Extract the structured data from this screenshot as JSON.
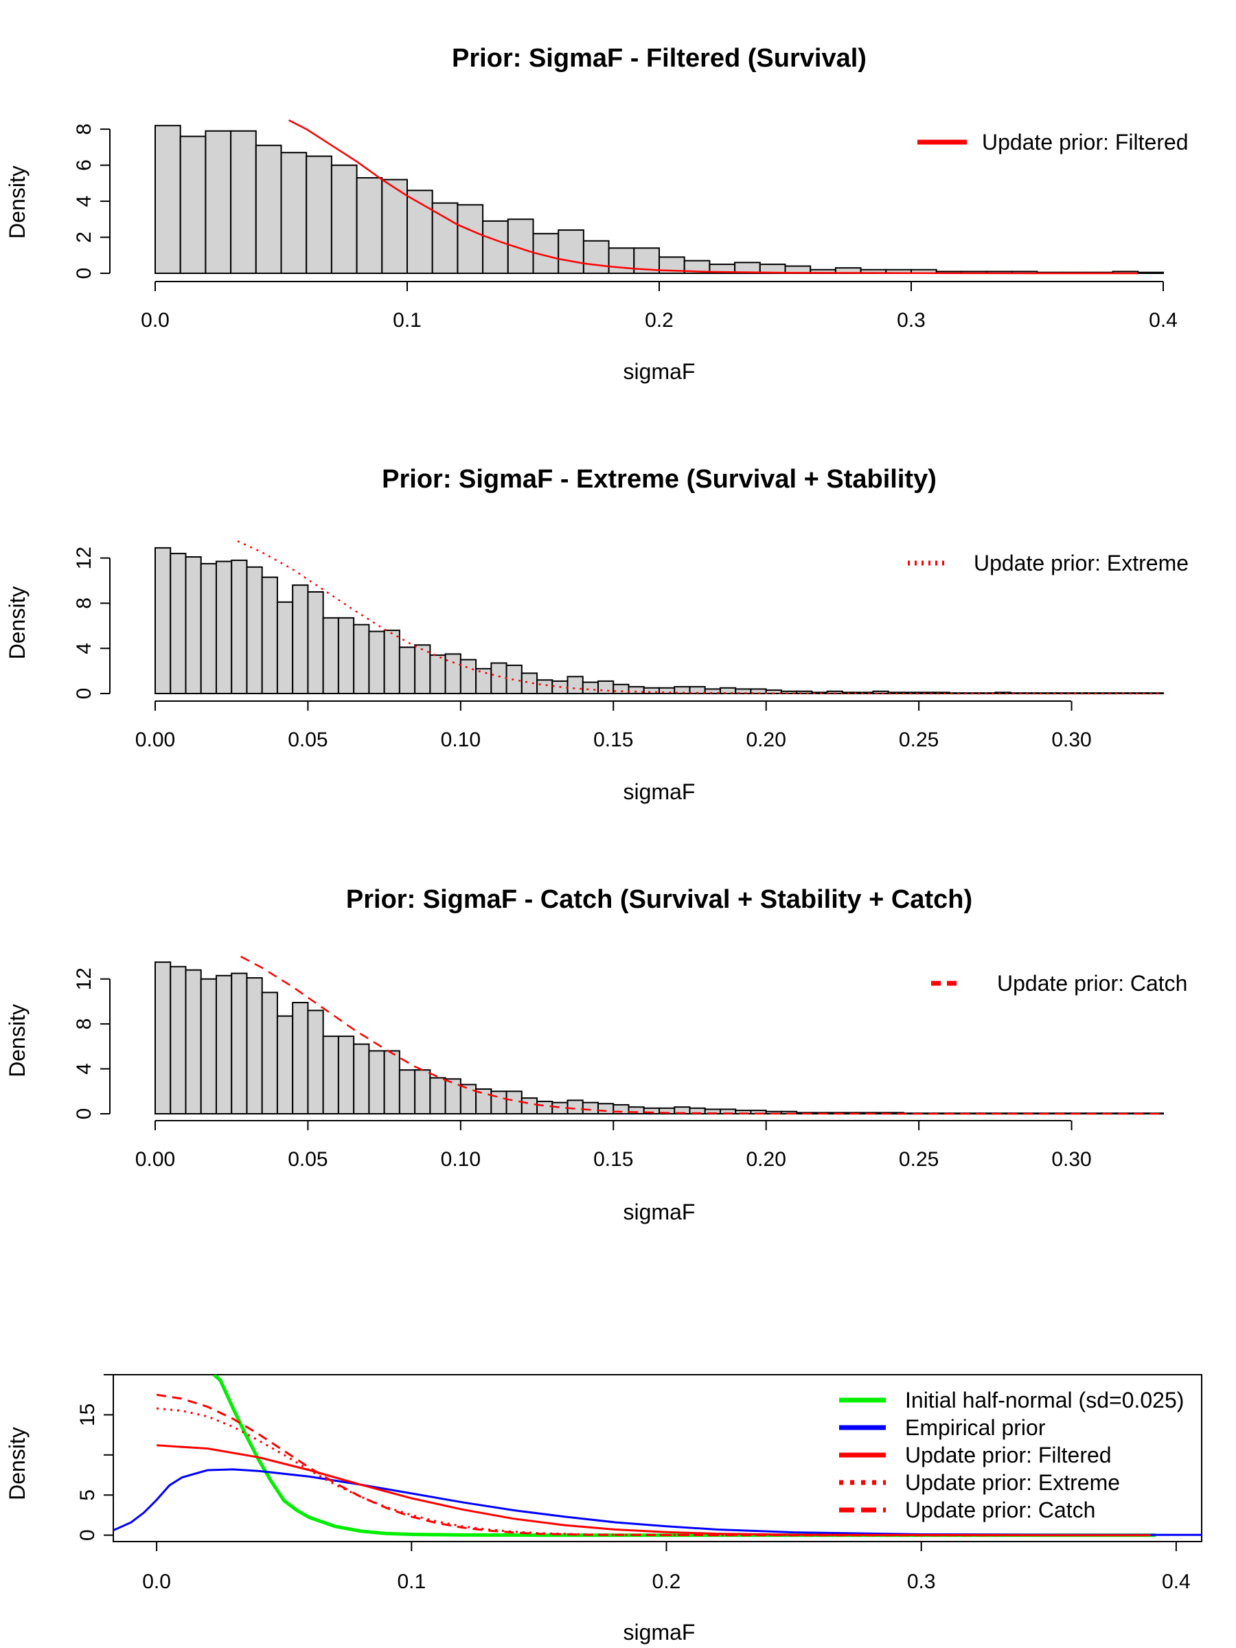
{
  "colors": {
    "bar_fill": "#d3d3d3",
    "outline": "#000000",
    "red": "#ff0000",
    "green": "#00ee00",
    "blue": "#0000ff"
  },
  "chart_data": [
    {
      "type": "bar",
      "title": "Prior: SigmaF - Filtered (Survival)",
      "xlabel": "sigmaF",
      "ylabel": "Density",
      "xlim": [
        0.0,
        0.4
      ],
      "ylim": [
        0,
        8.5
      ],
      "xticks": [
        "0.0",
        "0.1",
        "0.2",
        "0.3",
        "0.4"
      ],
      "yticks": [
        "0",
        "2",
        "4",
        "6",
        "8"
      ],
      "bin_width": 0.01,
      "bin_start": 0.0,
      "values": [
        8.2,
        7.6,
        7.9,
        7.9,
        7.1,
        6.7,
        6.5,
        6.0,
        5.3,
        5.2,
        4.6,
        3.9,
        3.8,
        2.9,
        3.0,
        2.2,
        2.4,
        1.8,
        1.4,
        1.4,
        0.9,
        0.7,
        0.5,
        0.6,
        0.5,
        0.4,
        0.2,
        0.3,
        0.2,
        0.2,
        0.2,
        0.1,
        0.1,
        0.1,
        0.1,
        0.05,
        0.05,
        0.05,
        0.1,
        0.05
      ],
      "legend": {
        "position": "top-right",
        "label": "Update prior: Filtered",
        "style": "solid"
      },
      "curve": {
        "style": "solid",
        "x_from": 0.053,
        "x_to": 0.39,
        "x": [
          0.053,
          0.06,
          0.07,
          0.08,
          0.09,
          0.1,
          0.11,
          0.12,
          0.13,
          0.14,
          0.15,
          0.16,
          0.17,
          0.18,
          0.19,
          0.2,
          0.22,
          0.25,
          0.3,
          0.35,
          0.39
        ],
        "y": [
          8.5,
          8.0,
          7.1,
          6.2,
          5.2,
          4.3,
          3.5,
          2.7,
          2.1,
          1.6,
          1.15,
          0.8,
          0.55,
          0.38,
          0.26,
          0.17,
          0.08,
          0.03,
          0.01,
          0.0,
          0.0
        ]
      }
    },
    {
      "type": "bar",
      "title": "Prior: SigmaF - Extreme (Survival + Stability)",
      "xlabel": "sigmaF",
      "ylabel": "Density",
      "xlim": [
        0.0,
        0.33
      ],
      "ylim": [
        0,
        13.5
      ],
      "xticks": [
        "0.00",
        "0.05",
        "0.10",
        "0.15",
        "0.20",
        "0.25",
        "0.30"
      ],
      "yticks": [
        "0",
        "4",
        "8",
        "12"
      ],
      "bin_width": 0.005,
      "bin_start": 0.0,
      "values": [
        12.9,
        12.4,
        12.1,
        11.5,
        11.7,
        11.8,
        11.2,
        10.3,
        8.1,
        9.6,
        9.0,
        6.7,
        6.7,
        6.1,
        5.5,
        5.6,
        4.1,
        4.3,
        3.4,
        3.5,
        3.0,
        2.2,
        2.7,
        2.5,
        1.8,
        1.2,
        1.1,
        1.5,
        1.0,
        1.1,
        0.8,
        0.6,
        0.5,
        0.5,
        0.6,
        0.6,
        0.4,
        0.5,
        0.4,
        0.4,
        0.3,
        0.2,
        0.2,
        0.1,
        0.2,
        0.1,
        0.1,
        0.2,
        0.1,
        0.1,
        0.1,
        0.1,
        0.05,
        0.05,
        0.05,
        0.1,
        0.05,
        0.05,
        0.05,
        0.05,
        0.05,
        0.05,
        0.05,
        0.05,
        0.05,
        0.05
      ],
      "legend": {
        "position": "top-right",
        "label": "Update prior: Extreme",
        "style": "dotted"
      },
      "curve": {
        "style": "dotted",
        "x": [
          0.027,
          0.035,
          0.045,
          0.055,
          0.065,
          0.075,
          0.085,
          0.095,
          0.105,
          0.115,
          0.125,
          0.135,
          0.15,
          0.17,
          0.2,
          0.25,
          0.33
        ],
        "y": [
          13.5,
          12.5,
          11.0,
          9.2,
          7.4,
          5.7,
          4.2,
          3.0,
          2.05,
          1.35,
          0.85,
          0.5,
          0.22,
          0.08,
          0.02,
          0.0,
          0.0
        ]
      }
    },
    {
      "type": "bar",
      "title": "Prior: SigmaF - Catch (Survival + Stability + Catch)",
      "xlabel": "sigmaF",
      "ylabel": "Density",
      "xlim": [
        0.0,
        0.33
      ],
      "ylim": [
        0,
        14
      ],
      "xticks": [
        "0.00",
        "0.05",
        "0.10",
        "0.15",
        "0.20",
        "0.25",
        "0.30"
      ],
      "yticks": [
        "0",
        "4",
        "8",
        "12"
      ],
      "bin_width": 0.005,
      "bin_start": 0.0,
      "values": [
        13.5,
        13.1,
        12.8,
        12.0,
        12.3,
        12.5,
        12.1,
        10.8,
        8.7,
        9.9,
        9.2,
        6.9,
        6.9,
        6.2,
        5.6,
        5.6,
        3.9,
        3.9,
        3.2,
        3.1,
        2.6,
        2.2,
        2.0,
        2.0,
        1.4,
        1.1,
        1.0,
        1.2,
        1.0,
        0.9,
        0.8,
        0.6,
        0.5,
        0.5,
        0.6,
        0.5,
        0.4,
        0.4,
        0.3,
        0.3,
        0.2,
        0.2,
        0.1,
        0.1,
        0.1,
        0.1,
        0.1,
        0.1,
        0.1,
        0.05,
        0.05,
        0.05,
        0.05,
        0.05,
        0.05,
        0.05,
        0.05,
        0.05,
        0.05,
        0.05,
        0.05,
        0.05,
        0.05,
        0.05,
        0.05,
        0.05
      ],
      "legend": {
        "position": "top-right",
        "label": "Update prior: Catch",
        "style": "dashed"
      },
      "curve": {
        "style": "dashed",
        "x": [
          0.028,
          0.035,
          0.045,
          0.055,
          0.065,
          0.075,
          0.085,
          0.095,
          0.105,
          0.115,
          0.125,
          0.135,
          0.15,
          0.17,
          0.2,
          0.25,
          0.33
        ],
        "y": [
          14.0,
          13.0,
          11.3,
          9.4,
          7.5,
          5.8,
          4.2,
          3.0,
          2.0,
          1.3,
          0.8,
          0.5,
          0.2,
          0.07,
          0.02,
          0.0,
          0.0
        ]
      }
    },
    {
      "type": "line",
      "title": "",
      "xlabel": "sigmaF",
      "ylabel": "Density",
      "xlim": [
        -0.017,
        0.41
      ],
      "ylim": [
        -0.8,
        20
      ],
      "xticks": [
        "0.0",
        "0.1",
        "0.2",
        "0.3",
        "0.4"
      ],
      "yticks": [
        "0",
        "5",
        "15"
      ],
      "legend": {
        "position": "top-right"
      },
      "series": [
        {
          "name": "Initial half-normal (sd=0.025)",
          "color": "green",
          "style": "solid",
          "width": 5,
          "x": [
            0.0225,
            0.025,
            0.03,
            0.035,
            0.04,
            0.045,
            0.05,
            0.055,
            0.06,
            0.07,
            0.08,
            0.09,
            0.1,
            0.12,
            0.15,
            0.2,
            0.3,
            0.392
          ],
          "y": [
            20,
            19.3,
            15.8,
            12.5,
            9.4,
            6.7,
            4.3,
            3.1,
            2.2,
            1.1,
            0.5,
            0.2,
            0.1,
            0.02,
            0.0,
            0.0,
            0.0,
            0.0
          ]
        },
        {
          "name": "Empirical prior",
          "color": "blue",
          "style": "solid",
          "width": 3,
          "x": [
            -0.017,
            -0.01,
            -0.005,
            0.0,
            0.005,
            0.01,
            0.02,
            0.03,
            0.04,
            0.06,
            0.08,
            0.1,
            0.12,
            0.14,
            0.16,
            0.18,
            0.2,
            0.22,
            0.25,
            0.3,
            0.35,
            0.41
          ],
          "y": [
            0.6,
            1.6,
            2.8,
            4.4,
            6.2,
            7.2,
            8.1,
            8.2,
            8.0,
            7.3,
            6.3,
            5.2,
            4.1,
            3.1,
            2.3,
            1.6,
            1.1,
            0.7,
            0.35,
            0.1,
            0.05,
            0.03
          ]
        },
        {
          "name": "Update prior: Filtered",
          "color": "red",
          "style": "solid",
          "width": 3,
          "x": [
            0.0,
            0.02,
            0.04,
            0.06,
            0.08,
            0.1,
            0.12,
            0.14,
            0.16,
            0.18,
            0.2,
            0.22,
            0.25,
            0.3,
            0.35,
            0.39
          ],
          "y": [
            11.2,
            10.8,
            9.7,
            8.1,
            6.3,
            4.6,
            3.2,
            2.05,
            1.25,
            0.7,
            0.38,
            0.18,
            0.05,
            0.01,
            0.0,
            0.0
          ]
        },
        {
          "name": "Update prior: Extreme",
          "color": "red",
          "style": "dotted",
          "width": 3,
          "x": [
            0.0,
            0.01,
            0.02,
            0.03,
            0.04,
            0.05,
            0.06,
            0.07,
            0.08,
            0.09,
            0.1,
            0.11,
            0.12,
            0.13,
            0.14,
            0.15,
            0.17,
            0.2,
            0.25,
            0.33
          ],
          "y": [
            15.8,
            15.5,
            14.8,
            13.5,
            11.8,
            10.0,
            8.1,
            6.3,
            4.8,
            3.5,
            2.5,
            1.7,
            1.1,
            0.7,
            0.42,
            0.24,
            0.07,
            0.01,
            0.0,
            0.0
          ]
        },
        {
          "name": "Update prior: Catch",
          "color": "red",
          "style": "dashed",
          "width": 3,
          "x": [
            0.0,
            0.01,
            0.02,
            0.03,
            0.04,
            0.05,
            0.06,
            0.07,
            0.08,
            0.09,
            0.1,
            0.11,
            0.12,
            0.13,
            0.14,
            0.15,
            0.17,
            0.2,
            0.25,
            0.33
          ],
          "y": [
            17.5,
            17.0,
            16.0,
            14.5,
            12.6,
            10.5,
            8.4,
            6.5,
            4.8,
            3.4,
            2.3,
            1.5,
            0.95,
            0.57,
            0.33,
            0.18,
            0.05,
            0.01,
            0.0,
            0.0
          ]
        }
      ]
    }
  ]
}
